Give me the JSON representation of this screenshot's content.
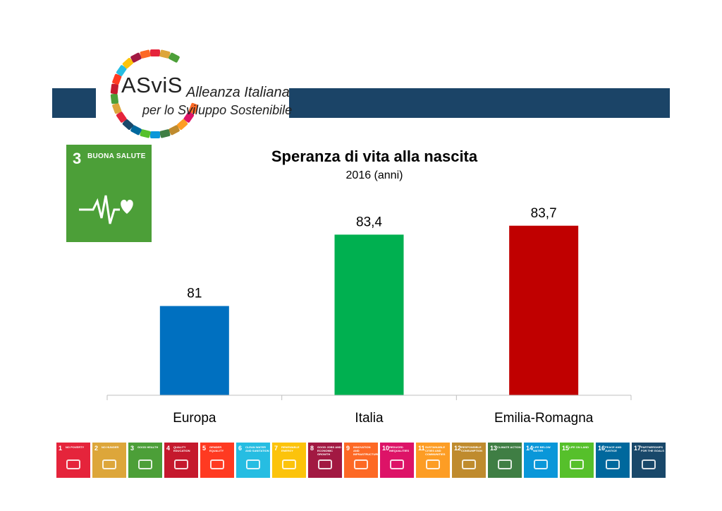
{
  "logo": {
    "brand": "ASviS",
    "line1": "Alleanza Italiana",
    "line2": "per lo Sviluppo Sostenibile",
    "ring_colors": [
      "#e5243b",
      "#dda63a",
      "#4c9f38",
      "#c5192d",
      "#ff3a21",
      "#26bde2",
      "#fcc30b",
      "#a21942",
      "#fd6925",
      "#dd1367",
      "#fd9d24",
      "#bf8b2e",
      "#3f7e44",
      "#0a97d9",
      "#56c02b",
      "#00689d",
      "#19486a"
    ]
  },
  "sdg_badge": {
    "number": "3",
    "label": "BUONA SALUTE",
    "icon": "heartbeat-heart-icon",
    "color": "#4c9f38"
  },
  "chart_data": {
    "type": "bar",
    "title": "Speranza di vita alla nascita",
    "subtitle": "2016 (anni)",
    "categories": [
      "Europa",
      "Italia",
      "Emilia-Romagna"
    ],
    "values": [
      81,
      83.4,
      83.7
    ],
    "value_labels": [
      "81",
      "83,4",
      "83,7"
    ],
    "colors": [
      "#0070c0",
      "#00b050",
      "#c00000"
    ],
    "ylim": [
      78,
      85
    ]
  },
  "sdg_strip": [
    {
      "n": "1",
      "label": "NO POVERTY",
      "color": "#e5243b",
      "icon": "people-icon"
    },
    {
      "n": "2",
      "label": "NO HUNGER",
      "color": "#dda63a",
      "icon": "bowl-icon"
    },
    {
      "n": "3",
      "label": "GOOD HEALTH",
      "color": "#4c9f38",
      "icon": "heartbeat-icon"
    },
    {
      "n": "4",
      "label": "QUALITY EDUCATION",
      "color": "#c5192d",
      "icon": "book-icon"
    },
    {
      "n": "5",
      "label": "GENDER EQUALITY",
      "color": "#ff3a21",
      "icon": "gender-icon"
    },
    {
      "n": "6",
      "label": "CLEAN WATER AND SANITATION",
      "color": "#26bde2",
      "icon": "water-icon"
    },
    {
      "n": "7",
      "label": "RENEWABLE ENERGY",
      "color": "#fcc30b",
      "icon": "sun-icon"
    },
    {
      "n": "8",
      "label": "GOOD JOBS AND ECONOMIC GROWTH",
      "color": "#a21942",
      "icon": "growth-chart-icon"
    },
    {
      "n": "9",
      "label": "INNOVATION AND INFRASTRUCTURE",
      "color": "#fd6925",
      "icon": "cubes-icon"
    },
    {
      "n": "10",
      "label": "REDUCED INEQUALITIES",
      "color": "#dd1367",
      "icon": "equality-icon"
    },
    {
      "n": "11",
      "label": "SUSTAINABLE CITIES AND COMMUNITIES",
      "color": "#fd9d24",
      "icon": "city-icon"
    },
    {
      "n": "12",
      "label": "RESPONSIBLE CONSUMPTION",
      "color": "#bf8b2e",
      "icon": "infinity-icon"
    },
    {
      "n": "13",
      "label": "CLIMATE ACTION",
      "color": "#3f7e44",
      "icon": "eye-icon"
    },
    {
      "n": "14",
      "label": "LIFE BELOW WATER",
      "color": "#0a97d9",
      "icon": "fish-icon"
    },
    {
      "n": "15",
      "label": "LIFE ON LAND",
      "color": "#56c02b",
      "icon": "tree-icon"
    },
    {
      "n": "16",
      "label": "PEACE AND JUSTICE",
      "color": "#00689d",
      "icon": "dove-icon"
    },
    {
      "n": "17",
      "label": "PARTNERSHIPS FOR THE GOALS",
      "color": "#19486a",
      "icon": "rings-icon"
    }
  ]
}
